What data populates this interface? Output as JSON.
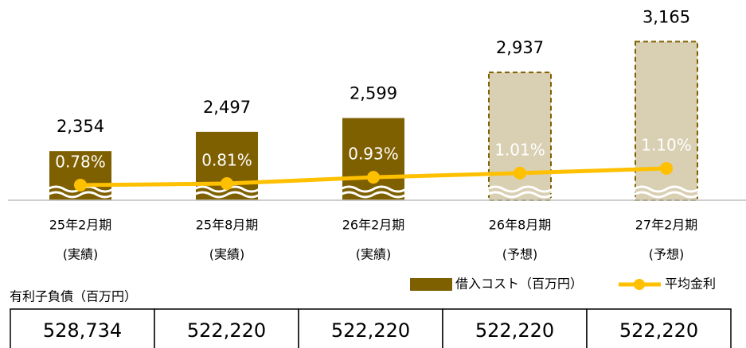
{
  "chart_data": {
    "type": "bar_line",
    "categories": [
      [
        "25年2月期",
        "(実績)"
      ],
      [
        "25年8月期",
        "(実績)"
      ],
      [
        "26年2月期",
        "(実績)"
      ],
      [
        "26年8月期",
        "(予想)"
      ],
      [
        "27年2月期",
        "(予想)"
      ]
    ],
    "series": [
      {
        "name": "借入コスト（百万円）",
        "type": "bar",
        "color": "#7f6000",
        "colors": [
          "#7f6000",
          "#7f6000",
          "#7f6000",
          "#d9cfb3",
          "#d9cfb3"
        ],
        "border_dashed": [
          false,
          false,
          false,
          true,
          true
        ],
        "values": [
          2354,
          2497,
          2599,
          2937,
          3165
        ],
        "value_labels": [
          "2,354",
          "2,497",
          "2,599",
          "2,937",
          "3,165"
        ]
      },
      {
        "name": "平均金利",
        "type": "line",
        "axis": "y2",
        "color": "#ffc000",
        "values": [
          0.78,
          0.81,
          0.93,
          1.01,
          1.1
        ],
        "value_labels": [
          "0.78%",
          "0.81%",
          "0.93%",
          "1.01%",
          "1.10%"
        ]
      }
    ],
    "ylim": [
      1990,
      3350
    ],
    "y2lim": [
      0.49,
      4.01
    ],
    "table": {
      "title": "有利子負債（百万円）",
      "cells": [
        "528,734",
        "522,220",
        "522,220",
        "522,220",
        "522,220"
      ]
    }
  }
}
